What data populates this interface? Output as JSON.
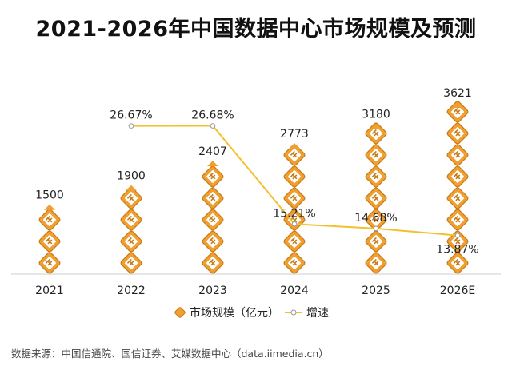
{
  "title": "2021-2026年中国数据中心市场规模及预测",
  "source": "数据来源：中国信通院、国信证券、艾媒数据中心（data.iimedia.cn）",
  "chart_data": {
    "type": "bar",
    "categories": [
      "2021",
      "2022",
      "2023",
      "2024",
      "2025",
      "2026E"
    ],
    "series": [
      {
        "name": "市场规模（亿元）",
        "kind": "pictograph-bar",
        "values": [
          1500,
          1900,
          2407,
          2773,
          3180,
          3621
        ],
        "labels": [
          "1500",
          "1900",
          "2407",
          "2773",
          "3180",
          "3621"
        ]
      },
      {
        "name": "增速",
        "kind": "line",
        "x": [
          "2022",
          "2023",
          "2024",
          "2025",
          "2026E"
        ],
        "values": [
          26.67,
          26.68,
          15.21,
          14.68,
          13.87
        ],
        "labels": [
          "26.67%",
          "26.68%",
          "15.21%",
          "14.68%",
          "13.87%"
        ]
      }
    ],
    "colors": {
      "bar": "#F0A030",
      "bar_dark": "#C87A18",
      "line": "#F2C12E",
      "axis": "#cccccc"
    },
    "legend_position": "bottom-center",
    "grid": false
  }
}
